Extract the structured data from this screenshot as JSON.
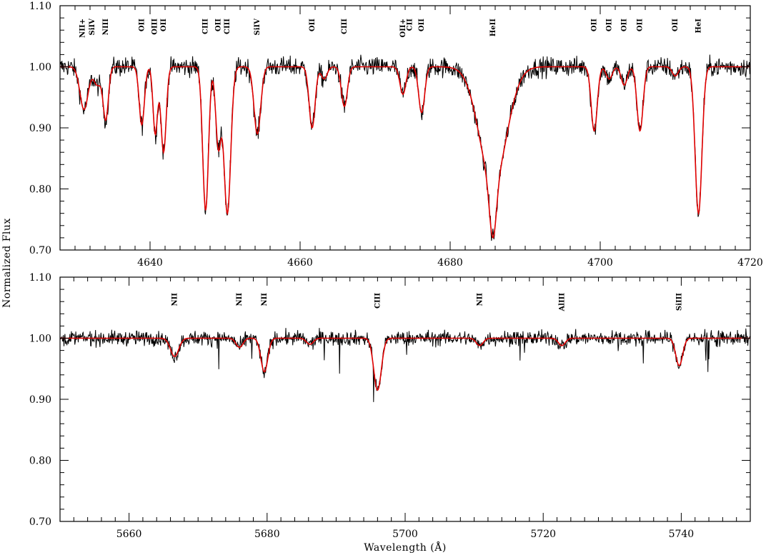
{
  "colors": {
    "observed": "#000000",
    "model": "#e00000",
    "frame": "#000000"
  },
  "chart_data": [
    {
      "type": "line",
      "name": "top-panel",
      "xlim": [
        4628,
        4720
      ],
      "ylim": [
        0.7,
        1.1
      ],
      "xticks": [
        4640,
        4660,
        4680,
        4700,
        4720
      ],
      "yticks": [
        0.7,
        0.8,
        0.9,
        1.0,
        1.1
      ],
      "ylabel": "Normalized Flux",
      "xlabel": "",
      "line_labels": [
        {
          "x": 4631.0,
          "text": "NII+"
        },
        {
          "x": 4632.3,
          "text": "SiIV"
        },
        {
          "x": 4634.1,
          "text": "NIII"
        },
        {
          "x": 4638.9,
          "text": "OII"
        },
        {
          "x": 4640.6,
          "text": "OIII"
        },
        {
          "x": 4641.8,
          "text": "OII"
        },
        {
          "x": 4647.4,
          "text": "CIII"
        },
        {
          "x": 4649.1,
          "text": "OII"
        },
        {
          "x": 4650.3,
          "text": "CIII"
        },
        {
          "x": 4654.3,
          "text": "SiIV"
        },
        {
          "x": 4661.6,
          "text": "OII"
        },
        {
          "x": 4665.9,
          "text": "CIII"
        },
        {
          "x": 4673.7,
          "text": "OII+"
        },
        {
          "x": 4674.6,
          "text": "CII"
        },
        {
          "x": 4676.2,
          "text": "OII"
        },
        {
          "x": 4685.7,
          "text": "HeII"
        },
        {
          "x": 4699.2,
          "text": "OII"
        },
        {
          "x": 4701.2,
          "text": "OII"
        },
        {
          "x": 4703.2,
          "text": "OII"
        },
        {
          "x": 4705.3,
          "text": "OII"
        },
        {
          "x": 4710.0,
          "text": "OII"
        },
        {
          "x": 4713.1,
          "text": "HeI"
        }
      ],
      "model_lines": [
        {
          "x": 4631.2,
          "depth": 0.07,
          "width": 0.55
        },
        {
          "x": 4633.0,
          "depth": 0.03,
          "width": 0.5
        },
        {
          "x": 4634.1,
          "depth": 0.085,
          "width": 0.35
        },
        {
          "x": 4638.9,
          "depth": 0.095,
          "width": 0.35
        },
        {
          "x": 4640.7,
          "depth": 0.11,
          "width": 0.3
        },
        {
          "x": 4641.8,
          "depth": 0.14,
          "width": 0.35
        },
        {
          "x": 4647.4,
          "depth": 0.235,
          "width": 0.38
        },
        {
          "x": 4649.1,
          "depth": 0.13,
          "width": 0.35
        },
        {
          "x": 4650.3,
          "depth": 0.24,
          "width": 0.45
        },
        {
          "x": 4654.3,
          "depth": 0.11,
          "width": 0.45
        },
        {
          "x": 4661.6,
          "depth": 0.1,
          "width": 0.4
        },
        {
          "x": 4663.2,
          "depth": 0.02,
          "width": 0.4
        },
        {
          "x": 4665.9,
          "depth": 0.065,
          "width": 0.4
        },
        {
          "x": 4673.7,
          "depth": 0.045,
          "width": 0.4
        },
        {
          "x": 4676.2,
          "depth": 0.075,
          "width": 0.4
        },
        {
          "x": 4685.7,
          "depth": 0.19,
          "width": 1.8
        },
        {
          "x": 4685.7,
          "depth": 0.09,
          "width": 0.45
        },
        {
          "x": 4699.2,
          "depth": 0.105,
          "width": 0.4
        },
        {
          "x": 4701.2,
          "depth": 0.02,
          "width": 0.4
        },
        {
          "x": 4703.2,
          "depth": 0.03,
          "width": 0.4
        },
        {
          "x": 4705.3,
          "depth": 0.105,
          "width": 0.4
        },
        {
          "x": 4710.0,
          "depth": 0.015,
          "width": 0.4
        },
        {
          "x": 4713.1,
          "depth": 0.24,
          "width": 0.45
        }
      ]
    },
    {
      "type": "line",
      "name": "bottom-panel",
      "xlim": [
        5650,
        5750
      ],
      "ylim": [
        0.7,
        1.1
      ],
      "xticks": [
        5660,
        5680,
        5700,
        5720,
        5740
      ],
      "yticks": [
        0.7,
        0.8,
        0.9,
        1.0,
        1.1
      ],
      "ylabel": "",
      "xlabel": "Wavelength (Å)",
      "line_labels": [
        {
          "x": 5666.6,
          "text": "NII"
        },
        {
          "x": 5676.0,
          "text": "NII"
        },
        {
          "x": 5679.6,
          "text": "NII"
        },
        {
          "x": 5696.0,
          "text": "CIII"
        },
        {
          "x": 5710.8,
          "text": "NII"
        },
        {
          "x": 5722.7,
          "text": "AlIII"
        },
        {
          "x": 5739.7,
          "text": "SiIII"
        }
      ],
      "model_lines": [
        {
          "x": 5666.6,
          "depth": 0.03,
          "width": 0.6
        },
        {
          "x": 5676.0,
          "depth": 0.015,
          "width": 0.5
        },
        {
          "x": 5679.6,
          "depth": 0.055,
          "width": 0.5
        },
        {
          "x": 5686.2,
          "depth": 0.01,
          "width": 0.5
        },
        {
          "x": 5696.0,
          "depth": 0.085,
          "width": 0.55
        },
        {
          "x": 5710.8,
          "depth": 0.012,
          "width": 0.5
        },
        {
          "x": 5722.7,
          "depth": 0.012,
          "width": 0.5
        },
        {
          "x": 5739.7,
          "depth": 0.045,
          "width": 0.5
        }
      ]
    }
  ]
}
